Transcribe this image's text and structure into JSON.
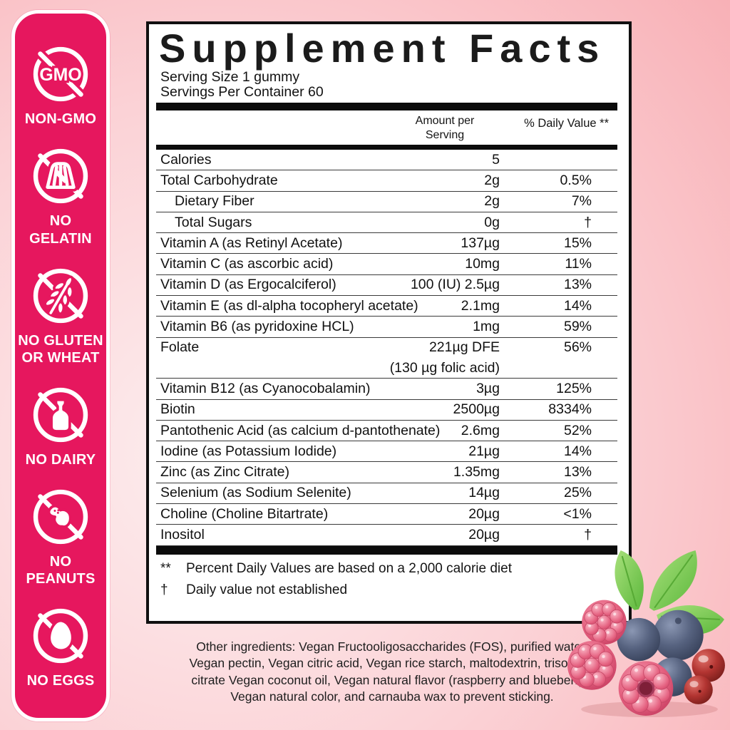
{
  "colors": {
    "badge_panel_pink": "#E6175E",
    "panel_border_black": "#101010",
    "background_pink_deep": "#F8ADB3",
    "background_pink_light": "#FDEEEF",
    "text_black": "#141414"
  },
  "badges": {
    "items": [
      {
        "icon": "no-gmo-icon",
        "icon_text": "GMO",
        "label": "NON-GMO"
      },
      {
        "icon": "no-gelatin-icon",
        "label": "NO GELATIN"
      },
      {
        "icon": "no-gluten-icon",
        "label": "NO GLUTEN OR WHEAT"
      },
      {
        "icon": "no-dairy-icon",
        "label": "NO DAIRY"
      },
      {
        "icon": "no-peanuts-icon",
        "label": "NO PEANUTS"
      },
      {
        "icon": "no-eggs-icon",
        "label": "NO EGGS"
      }
    ]
  },
  "supplement_facts": {
    "title": "Supplement Facts",
    "serving_size_label": "Serving Size 1 gummy",
    "servings_per_container_label": "Servings Per Container 60",
    "col_amount_header": "Amount per Serving",
    "col_dv_header": "% Daily Value **",
    "rows": [
      {
        "name": "Calories",
        "amount": "5",
        "dv": ""
      },
      {
        "name": "Total Carbohydrate",
        "amount": "2g",
        "dv": "0.5%"
      },
      {
        "name": "Dietary Fiber",
        "amount": "2g",
        "dv": "7%",
        "indent": true
      },
      {
        "name": "Total Sugars",
        "amount": "0g",
        "dv": "†",
        "indent": true
      },
      {
        "name": "Vitamin A (as Retinyl Acetate)",
        "amount": "137µg",
        "dv": "15%"
      },
      {
        "name": "Vitamin C (as ascorbic acid)",
        "amount": "10mg",
        "dv": "11%"
      },
      {
        "name": "Vitamin D (as Ergocalciferol)",
        "amount": "100 (IU) 2.5µg",
        "dv": "13%"
      },
      {
        "name": "Vitamin E (as dl-alpha tocopheryl acetate)",
        "amount": "2.1mg",
        "dv": "14%"
      },
      {
        "name": "Vitamin B6 (as pyridoxine HCL)",
        "amount": "1mg",
        "dv": "59%"
      },
      {
        "name": "Folate",
        "amount": "221µg DFE",
        "dv": "56%",
        "sub": "(130 µg folic acid)"
      },
      {
        "name": "Vitamin B12 (as Cyanocobalamin)",
        "amount": "3µg",
        "dv": "125%"
      },
      {
        "name": "Biotin",
        "amount": "2500µg",
        "dv": "8334%"
      },
      {
        "name": "Pantothenic Acid (as calcium d-pantothenate)",
        "amount": "2.6mg",
        "dv": "52%"
      },
      {
        "name": "Iodine (as Potassium Iodide)",
        "amount": "21µg",
        "dv": "14%"
      },
      {
        "name": "Zinc (as Zinc Citrate)",
        "amount": "1.35mg",
        "dv": "13%"
      },
      {
        "name": "Selenium (as Sodium Selenite)",
        "amount": "14µg",
        "dv": "25%"
      },
      {
        "name": "Choline (Choline Bitartrate)",
        "amount": "20µg",
        "dv": "<1%"
      },
      {
        "name": "Inositol",
        "amount": "20µg",
        "dv": "†"
      }
    ],
    "footnotes": [
      {
        "symbol": "**",
        "text": "Percent Daily Values are based on a 2,000 calorie diet"
      },
      {
        "symbol": "†",
        "text": "Daily value not established"
      }
    ]
  },
  "other_ingredients": "Other ingredients: Vegan Fructooligosaccharides (FOS), purified water, Vegan pectin, Vegan citric acid, Vegan rice starch, maltodextrin, trisodium citrate Vegan coconut oil, Vegan natural flavor (raspberry and blueberry), Vegan natural color, and carnauba wax to prevent sticking.",
  "decor": {
    "image": "berries-cluster"
  }
}
